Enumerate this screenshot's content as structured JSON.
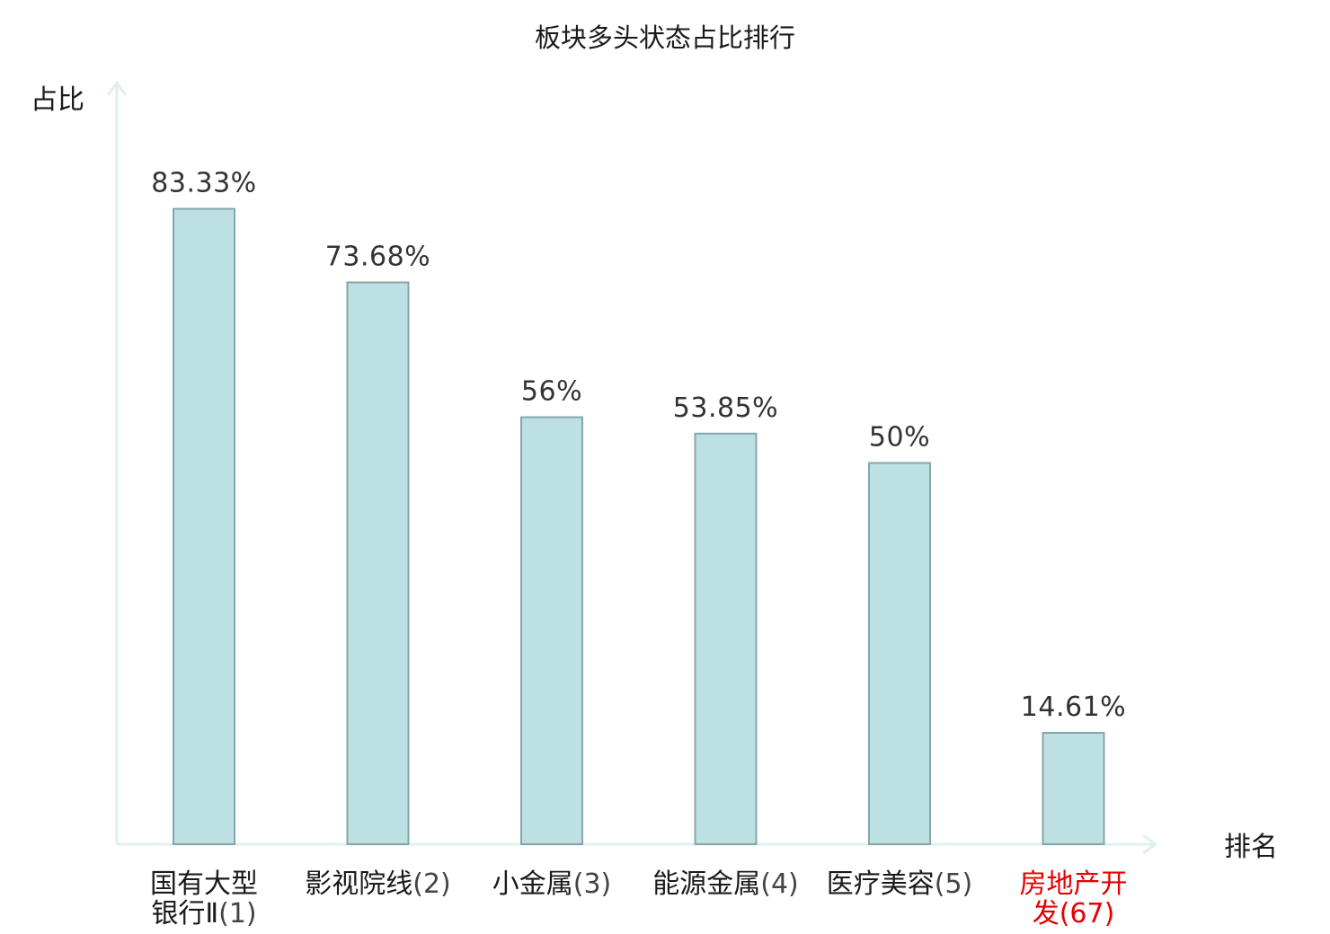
{
  "chart_data": {
    "type": "bar",
    "title": "板块多头状态占比排行",
    "xlabel": "排名",
    "ylabel": "占比",
    "ylim": [
      0,
      100
    ],
    "grid": false,
    "legend": "none",
    "categories": [
      {
        "name_lines": [
          "国有大型",
          "银行Ⅱ"
        ],
        "rank": "(1)",
        "highlight": false
      },
      {
        "name_lines": [
          "影视院线"
        ],
        "rank": "(2)",
        "highlight": false
      },
      {
        "name_lines": [
          "小金属"
        ],
        "rank": "(3)",
        "highlight": false
      },
      {
        "name_lines": [
          "能源金属"
        ],
        "rank": "(4)",
        "highlight": false
      },
      {
        "name_lines": [
          "医疗美容"
        ],
        "rank": "(5)",
        "highlight": false
      },
      {
        "name_lines": [
          "房地产开",
          "发"
        ],
        "rank": "(67)",
        "highlight": true
      }
    ],
    "values": [
      83.33,
      73.68,
      56,
      53.85,
      50,
      14.61
    ],
    "value_labels": [
      "83.33%",
      "73.68%",
      "56%",
      "53.85%",
      "50%",
      "14.61%"
    ]
  },
  "colors": {
    "bar_fill": "#bde0e3",
    "bar_stroke": "#86a7aa",
    "axis": "#dff0ef",
    "highlight_label": "#e60000",
    "normal_label": "#1a1a1a"
  }
}
